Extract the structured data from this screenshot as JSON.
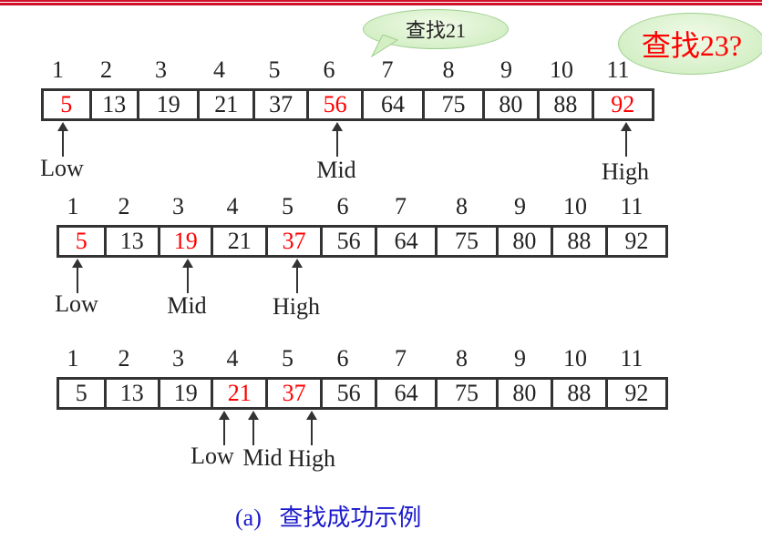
{
  "bubbles": {
    "search21": "查找21",
    "search23": "查找23?"
  },
  "indices": [
    "1",
    "2",
    "3",
    "4",
    "5",
    "6",
    "7",
    "8",
    "9",
    "10",
    "11"
  ],
  "rows": [
    {
      "values": [
        "5",
        "13",
        "19",
        "21",
        "37",
        "56",
        "64",
        "75",
        "80",
        "88",
        "92"
      ],
      "highlighted": [
        0,
        5,
        10
      ],
      "pointers": [
        {
          "label": "Low",
          "cell": 0
        },
        {
          "label": "Mid",
          "cell": 5
        },
        {
          "label": "High",
          "cell": 10
        }
      ]
    },
    {
      "values": [
        "5",
        "13",
        "19",
        "21",
        "37",
        "56",
        "64",
        "75",
        "80",
        "88",
        "92"
      ],
      "highlighted": [
        0,
        2,
        4
      ],
      "pointers": [
        {
          "label": "Low",
          "cell": 0
        },
        {
          "label": "Mid",
          "cell": 2
        },
        {
          "label": "High",
          "cell": 4
        }
      ]
    },
    {
      "values": [
        "5",
        "13",
        "19",
        "21",
        "37",
        "56",
        "64",
        "75",
        "80",
        "88",
        "92"
      ],
      "highlighted": [
        3,
        4
      ],
      "pointers": [
        {
          "label": "Low",
          "cell": 3
        },
        {
          "label": "Mid",
          "cell": 3
        },
        {
          "label": "High",
          "cell": 4
        }
      ]
    }
  ],
  "caption": {
    "tag": "(a)",
    "text": "查找成功示例"
  },
  "colors": {
    "highlight": "#ff0000",
    "caption": "#1a1acc",
    "bubble": "#c8eab8"
  }
}
